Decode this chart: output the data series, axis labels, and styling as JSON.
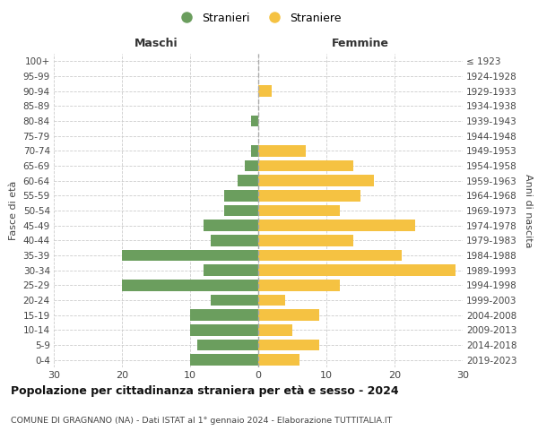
{
  "age_groups": [
    "0-4",
    "5-9",
    "10-14",
    "15-19",
    "20-24",
    "25-29",
    "30-34",
    "35-39",
    "40-44",
    "45-49",
    "50-54",
    "55-59",
    "60-64",
    "65-69",
    "70-74",
    "75-79",
    "80-84",
    "85-89",
    "90-94",
    "95-99",
    "100+"
  ],
  "birth_years": [
    "2019-2023",
    "2014-2018",
    "2009-2013",
    "2004-2008",
    "1999-2003",
    "1994-1998",
    "1989-1993",
    "1984-1988",
    "1979-1983",
    "1974-1978",
    "1969-1973",
    "1964-1968",
    "1959-1963",
    "1954-1958",
    "1949-1953",
    "1944-1948",
    "1939-1943",
    "1934-1938",
    "1929-1933",
    "1924-1928",
    "≤ 1923"
  ],
  "maschi": [
    10,
    9,
    10,
    10,
    7,
    20,
    8,
    20,
    7,
    8,
    5,
    5,
    3,
    2,
    1,
    0,
    1,
    0,
    0,
    0,
    0
  ],
  "femmine": [
    6,
    9,
    5,
    9,
    4,
    12,
    29,
    21,
    14,
    23,
    12,
    15,
    17,
    14,
    7,
    0,
    0,
    0,
    2,
    0,
    0
  ],
  "color_maschi": "#6b9e5e",
  "color_femmine": "#f5c242",
  "title": "Popolazione per cittadinanza straniera per età e sesso - 2024",
  "subtitle": "COMUNE DI GRAGNANO (NA) - Dati ISTAT al 1° gennaio 2024 - Elaborazione TUTTITALIA.IT",
  "xlabel_left": "Maschi",
  "xlabel_right": "Femmine",
  "ylabel_left": "Fasce di età",
  "ylabel_right": "Anni di nascita",
  "legend_maschi": "Stranieri",
  "legend_femmine": "Straniere",
  "xlim": 30,
  "background_color": "#ffffff",
  "grid_color": "#cccccc"
}
